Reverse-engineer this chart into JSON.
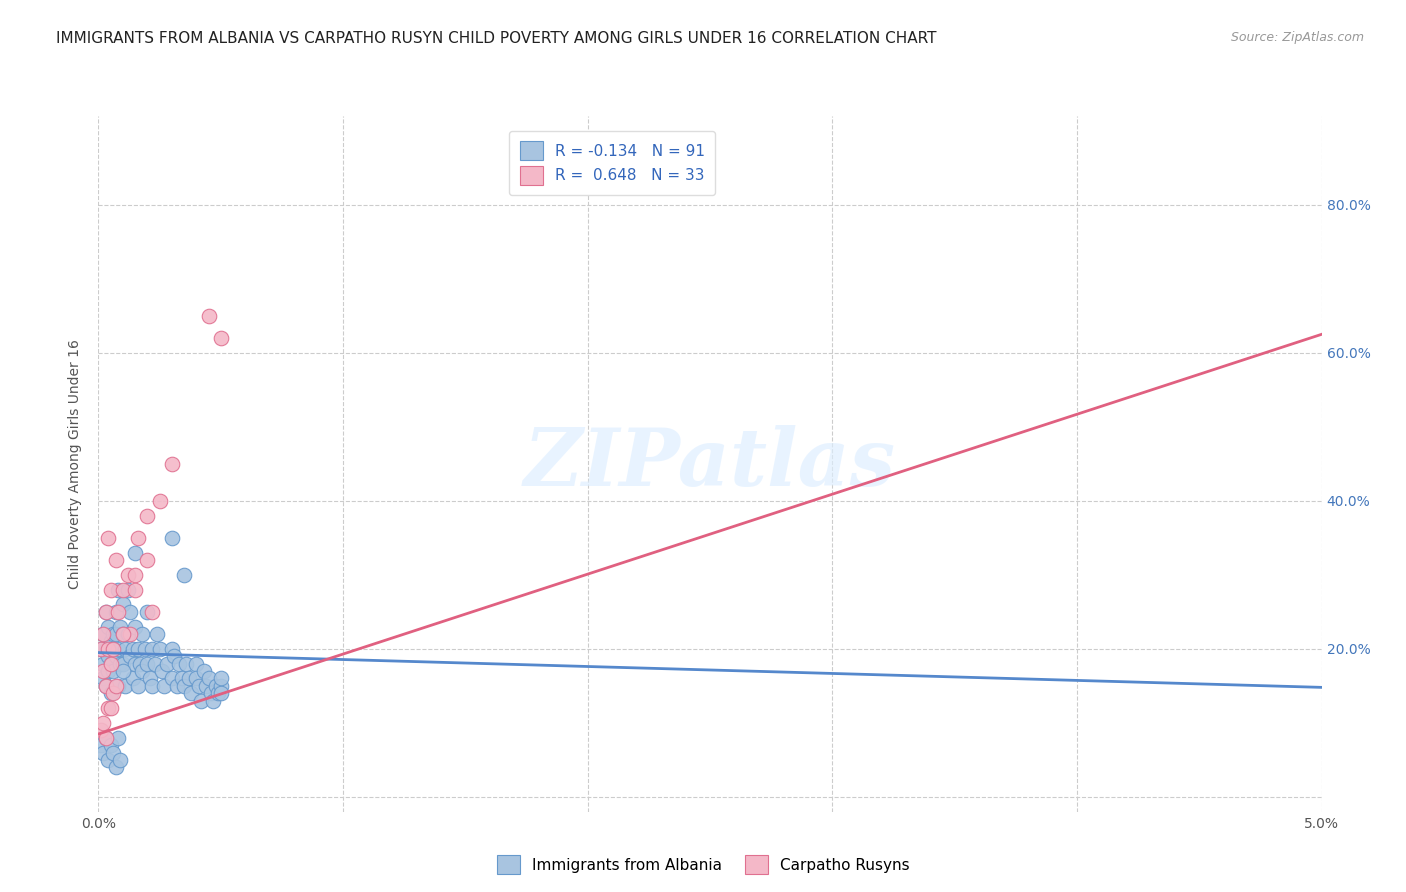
{
  "title": "IMMIGRANTS FROM ALBANIA VS CARPATHO RUSYN CHILD POVERTY AMONG GIRLS UNDER 16 CORRELATION CHART",
  "source": "Source: ZipAtlas.com",
  "ylabel": "Child Poverty Among Girls Under 16",
  "xlim": [
    0.0,
    0.05
  ],
  "ylim": [
    -0.02,
    0.92
  ],
  "xticks": [
    0.0,
    0.01,
    0.02,
    0.03,
    0.04,
    0.05
  ],
  "xticklabels": [
    "0.0%",
    "",
    "",
    "",
    "",
    "5.0%"
  ],
  "yticks_right": [
    0.0,
    0.2,
    0.4,
    0.6,
    0.8
  ],
  "yticklabels_right": [
    "",
    "20.0%",
    "40.0%",
    "60.0%",
    "80.0%"
  ],
  "albania_R": -0.134,
  "albania_N": 91,
  "rusyn_R": 0.648,
  "rusyn_N": 33,
  "albania_color": "#a8c4e0",
  "albania_edge": "#6699cc",
  "rusyn_color": "#f4b8c8",
  "rusyn_edge": "#e07090",
  "albania_line_color": "#5588cc",
  "rusyn_line_color": "#e06080",
  "legend_label_albania": "Immigrants from Albania",
  "legend_label_rusyn": "Carpatho Rusyns",
  "watermark": "ZIPatlas",
  "background_color": "#ffffff",
  "grid_color": "#cccccc",
  "title_fontsize": 11,
  "axis_fontsize": 10,
  "legend_fontsize": 11,
  "albania_scatter_x": [
    0.0001,
    0.0002,
    0.0002,
    0.0002,
    0.0003,
    0.0003,
    0.0003,
    0.0004,
    0.0004,
    0.0004,
    0.0005,
    0.0005,
    0.0005,
    0.0006,
    0.0006,
    0.0006,
    0.0007,
    0.0007,
    0.0007,
    0.0008,
    0.0008,
    0.0008,
    0.0009,
    0.0009,
    0.001,
    0.001,
    0.001,
    0.0011,
    0.0011,
    0.0012,
    0.0012,
    0.0013,
    0.0013,
    0.0014,
    0.0014,
    0.0015,
    0.0015,
    0.0016,
    0.0016,
    0.0017,
    0.0018,
    0.0018,
    0.0019,
    0.002,
    0.002,
    0.0021,
    0.0022,
    0.0022,
    0.0023,
    0.0024,
    0.0025,
    0.0026,
    0.0027,
    0.0028,
    0.003,
    0.003,
    0.0031,
    0.0032,
    0.0033,
    0.0034,
    0.0035,
    0.0036,
    0.0037,
    0.0038,
    0.004,
    0.004,
    0.0041,
    0.0042,
    0.0043,
    0.0044,
    0.0045,
    0.0046,
    0.0047,
    0.0048,
    0.0049,
    0.005,
    0.005,
    0.005,
    0.003,
    0.0035,
    0.0001,
    0.0002,
    0.0003,
    0.0004,
    0.0005,
    0.0006,
    0.0007,
    0.0008,
    0.0009,
    0.001,
    0.0015
  ],
  "albania_scatter_y": [
    0.2,
    0.18,
    0.22,
    0.16,
    0.25,
    0.15,
    0.2,
    0.23,
    0.19,
    0.17,
    0.21,
    0.18,
    0.14,
    0.22,
    0.2,
    0.17,
    0.25,
    0.19,
    0.22,
    0.28,
    0.2,
    0.15,
    0.23,
    0.18,
    0.26,
    0.22,
    0.18,
    0.2,
    0.15,
    0.28,
    0.22,
    0.19,
    0.25,
    0.16,
    0.2,
    0.23,
    0.18,
    0.2,
    0.15,
    0.18,
    0.22,
    0.17,
    0.2,
    0.25,
    0.18,
    0.16,
    0.2,
    0.15,
    0.18,
    0.22,
    0.2,
    0.17,
    0.15,
    0.18,
    0.2,
    0.16,
    0.19,
    0.15,
    0.18,
    0.16,
    0.15,
    0.18,
    0.16,
    0.14,
    0.18,
    0.16,
    0.15,
    0.13,
    0.17,
    0.15,
    0.16,
    0.14,
    0.13,
    0.15,
    0.14,
    0.15,
    0.14,
    0.16,
    0.35,
    0.3,
    0.07,
    0.06,
    0.08,
    0.05,
    0.07,
    0.06,
    0.04,
    0.08,
    0.05,
    0.17,
    0.33
  ],
  "rusyn_scatter_x": [
    0.0001,
    0.0002,
    0.0002,
    0.0003,
    0.0003,
    0.0004,
    0.0004,
    0.0005,
    0.0005,
    0.0006,
    0.0007,
    0.0008,
    0.001,
    0.0012,
    0.0013,
    0.0015,
    0.0016,
    0.002,
    0.0022,
    0.0025,
    0.0001,
    0.0002,
    0.0003,
    0.0004,
    0.0005,
    0.0006,
    0.0007,
    0.001,
    0.0015,
    0.002,
    0.003,
    0.0045,
    0.005
  ],
  "rusyn_scatter_y": [
    0.2,
    0.17,
    0.22,
    0.25,
    0.15,
    0.2,
    0.35,
    0.18,
    0.28,
    0.2,
    0.32,
    0.25,
    0.28,
    0.3,
    0.22,
    0.3,
    0.35,
    0.38,
    0.25,
    0.4,
    0.09,
    0.1,
    0.08,
    0.12,
    0.12,
    0.14,
    0.15,
    0.22,
    0.28,
    0.32,
    0.45,
    0.65,
    0.62
  ],
  "albania_line_x": [
    0.0,
    0.05
  ],
  "albania_line_y": [
    0.195,
    0.148
  ],
  "rusyn_line_x": [
    0.0,
    0.05
  ],
  "rusyn_line_y": [
    0.085,
    0.625
  ]
}
